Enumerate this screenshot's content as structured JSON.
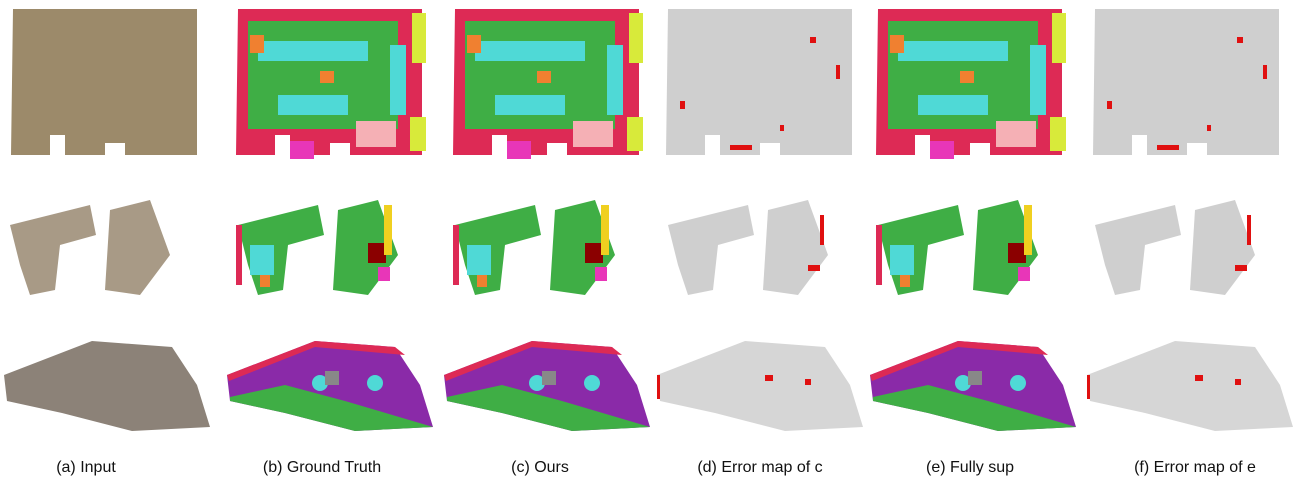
{
  "captions": [
    "(a) Input",
    "(b) Ground Truth",
    "(c)  Ours",
    "(d) Error map of c",
    "(e) Fully sup",
    "(f)  Error map of e"
  ]
}
